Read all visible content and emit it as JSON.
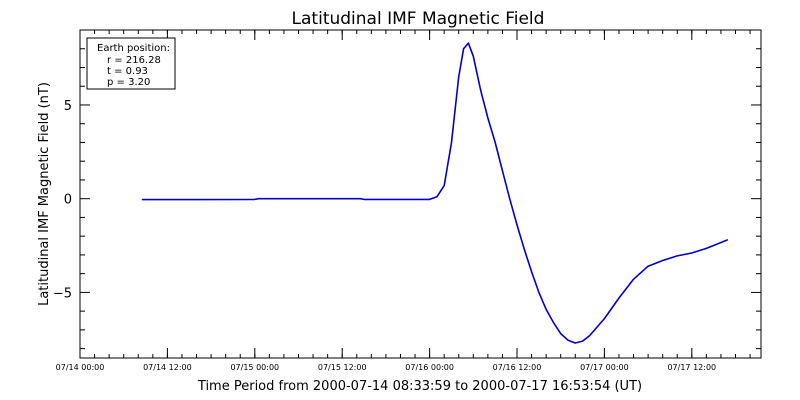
{
  "chart_data": {
    "type": "line",
    "title": "Latitudinal IMF Magnetic Field",
    "xlabel": "Time Period from 2000-07-14 08:33:59 to 2000-07-17 16:53:54 (UT)",
    "ylabel": "Latitudinal IMF Magnetic Field (nT)",
    "x_tick_labels": [
      "07/14 00:00",
      "07/14 12:00",
      "07/15 00:00",
      "07/15 12:00",
      "07/16 00:00",
      "07/16 12:00",
      "07/17 00:00",
      "07/17 12:00"
    ],
    "x_ticks": [
      "2000-07-14 00:00",
      "2000-07-14 12:00",
      "2000-07-15 00:00",
      "2000-07-15 12:00",
      "2000-07-16 00:00",
      "2000-07-16 12:00",
      "2000-07-17 00:00",
      "2000-07-17 12:00"
    ],
    "xlim": [
      "2000-07-14 00:00",
      "2000-07-17 21:30"
    ],
    "ylim": [
      -8.5,
      9.0
    ],
    "y_ticks": [
      -5,
      0,
      5
    ],
    "grid": false,
    "legend": {
      "position": "top-left",
      "lines": [
        "Earth position:",
        "r = 216.28",
        "t = 0.93",
        "p = 3.20"
      ]
    },
    "series": [
      {
        "color": "#0000cc",
        "points": [
          [
            "2000-07-14 08:34",
            -0.05
          ],
          [
            "2000-07-14 16:00",
            -0.05
          ],
          [
            "2000-07-15 00:00",
            -0.04
          ],
          [
            "2000-07-15 00:30",
            0.0
          ],
          [
            "2000-07-15 14:30",
            0.0
          ],
          [
            "2000-07-15 15:00",
            -0.04
          ],
          [
            "2000-07-16 00:00",
            -0.04
          ],
          [
            "2000-07-16 01:00",
            0.1
          ],
          [
            "2000-07-16 02:00",
            0.7
          ],
          [
            "2000-07-16 03:00",
            3.0
          ],
          [
            "2000-07-16 04:00",
            6.5
          ],
          [
            "2000-07-16 04:40",
            8.0
          ],
          [
            "2000-07-16 05:20",
            8.3
          ],
          [
            "2000-07-16 06:00",
            7.6
          ],
          [
            "2000-07-16 07:00",
            5.8
          ],
          [
            "2000-07-16 08:00",
            4.3
          ],
          [
            "2000-07-16 09:00",
            3.0
          ],
          [
            "2000-07-16 10:00",
            1.5
          ],
          [
            "2000-07-16 11:00",
            0.0
          ],
          [
            "2000-07-16 12:00",
            -1.4
          ],
          [
            "2000-07-16 13:00",
            -2.7
          ],
          [
            "2000-07-16 14:00",
            -3.9
          ],
          [
            "2000-07-16 15:00",
            -5.0
          ],
          [
            "2000-07-16 16:00",
            -5.9
          ],
          [
            "2000-07-16 17:00",
            -6.6
          ],
          [
            "2000-07-16 18:00",
            -7.2
          ],
          [
            "2000-07-16 19:00",
            -7.55
          ],
          [
            "2000-07-16 20:00",
            -7.7
          ],
          [
            "2000-07-16 21:00",
            -7.6
          ],
          [
            "2000-07-16 22:00",
            -7.3
          ],
          [
            "2000-07-17 00:00",
            -6.4
          ],
          [
            "2000-07-17 02:00",
            -5.3
          ],
          [
            "2000-07-17 04:00",
            -4.3
          ],
          [
            "2000-07-17 06:00",
            -3.6
          ],
          [
            "2000-07-17 08:00",
            -3.3
          ],
          [
            "2000-07-17 10:00",
            -3.05
          ],
          [
            "2000-07-17 12:00",
            -2.9
          ],
          [
            "2000-07-17 14:00",
            -2.65
          ],
          [
            "2000-07-17 16:54",
            -2.2
          ]
        ]
      }
    ]
  }
}
